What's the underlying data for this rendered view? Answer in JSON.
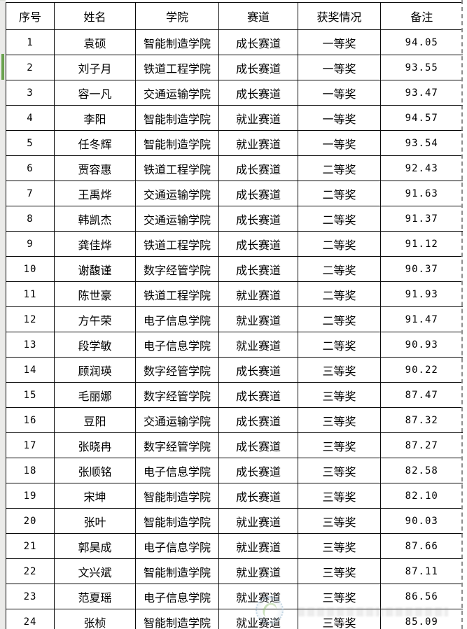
{
  "app": {
    "kind": "spreadsheet-grid",
    "selected_row_indicator_row": 2
  },
  "colors": {
    "grid_border": "#0a0a0a",
    "cell_background": "#ffffff",
    "margin_strip": "#ebebe9",
    "selection_green": "#6aa24f",
    "page_break_gray": "#8f8f8f",
    "watermark_blue": "#b9cfdf",
    "watermark_green": "#8fbf6f"
  },
  "icons": {
    "watermark": "circular-seal-icon"
  },
  "table": {
    "header_keys": [
      "index",
      "name",
      "college",
      "track",
      "award",
      "remark"
    ],
    "headers": [
      "序号",
      "姓名",
      "学院",
      "赛道",
      "获奖情况",
      "备注"
    ],
    "rows": [
      [
        "1",
        "袁硕",
        "智能制造学院",
        "成长赛道",
        "一等奖",
        "94.05"
      ],
      [
        "2",
        "刘子月",
        "铁道工程学院",
        "成长赛道",
        "一等奖",
        "93.55"
      ],
      [
        "3",
        "容一凡",
        "交通运输学院",
        "成长赛道",
        "一等奖",
        "93.47"
      ],
      [
        "4",
        "李阳",
        "智能制造学院",
        "就业赛道",
        "一等奖",
        "94.57"
      ],
      [
        "5",
        "任冬辉",
        "智能制造学院",
        "就业赛道",
        "一等奖",
        "93.54"
      ],
      [
        "6",
        "贾容惠",
        "铁道工程学院",
        "成长赛道",
        "二等奖",
        "92.43"
      ],
      [
        "7",
        "王禹烨",
        "交通运输学院",
        "成长赛道",
        "二等奖",
        "91.63"
      ],
      [
        "8",
        "韩凯杰",
        "交通运输学院",
        "成长赛道",
        "二等奖",
        "91.37"
      ],
      [
        "9",
        "龚佳烨",
        "铁道工程学院",
        "成长赛道",
        "二等奖",
        "91.12"
      ],
      [
        "10",
        "谢馥谨",
        "数字经管学院",
        "成长赛道",
        "二等奖",
        "90.37"
      ],
      [
        "11",
        "陈世豪",
        "铁道工程学院",
        "就业赛道",
        "二等奖",
        "91.93"
      ],
      [
        "12",
        "方午荣",
        "电子信息学院",
        "就业赛道",
        "二等奖",
        "91.47"
      ],
      [
        "13",
        "段学敏",
        "电子信息学院",
        "就业赛道",
        "二等奖",
        "90.93"
      ],
      [
        "14",
        "顾润瑛",
        "数字经管学院",
        "成长赛道",
        "三等奖",
        "90.22"
      ],
      [
        "15",
        "毛丽娜",
        "数字经管学院",
        "成长赛道",
        "三等奖",
        "87.47"
      ],
      [
        "16",
        "豆阳",
        "交通运输学院",
        "成长赛道",
        "三等奖",
        "87.32"
      ],
      [
        "17",
        "张晓冉",
        "数字经管学院",
        "成长赛道",
        "三等奖",
        "87.27"
      ],
      [
        "18",
        "张顺铭",
        "电子信息学院",
        "成长赛道",
        "三等奖",
        "82.58"
      ],
      [
        "19",
        "宋坤",
        "智能制造学院",
        "成长赛道",
        "三等奖",
        "82.10"
      ],
      [
        "20",
        "张叶",
        "智能制造学院",
        "就业赛道",
        "三等奖",
        "90.03"
      ],
      [
        "21",
        "郭昊成",
        "电子信息学院",
        "就业赛道",
        "三等奖",
        "87.66"
      ],
      [
        "22",
        "文兴斌",
        "智能制造学院",
        "就业赛道",
        "三等奖",
        "87.11"
      ],
      [
        "23",
        "范夏瑶",
        "电子信息学院",
        "就业赛道",
        "三等奖",
        "86.56"
      ],
      [
        "24",
        "张桢",
        "智能制造学院",
        "就业赛道",
        "三等奖",
        "85.09"
      ]
    ]
  }
}
